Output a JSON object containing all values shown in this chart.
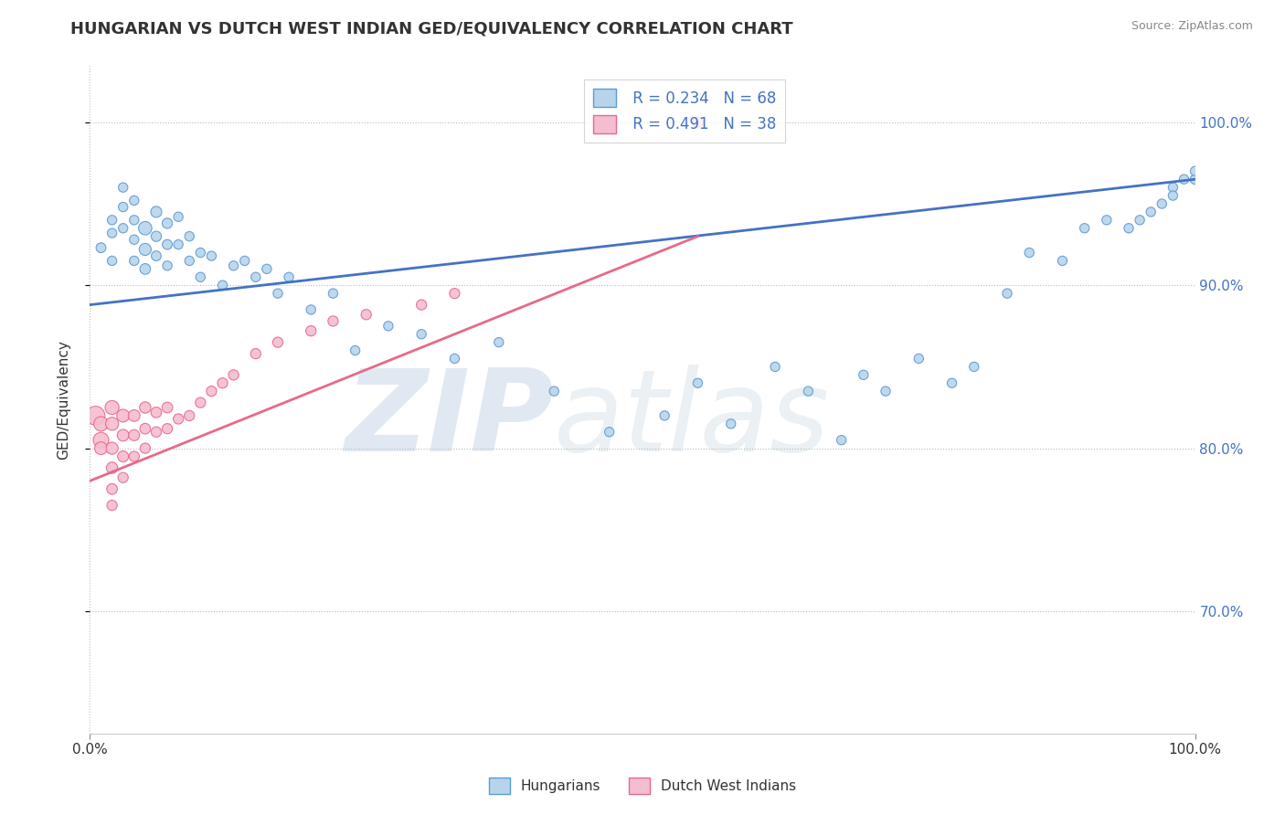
{
  "title": "HUNGARIAN VS DUTCH WEST INDIAN GED/EQUIVALENCY CORRELATION CHART",
  "source": "Source: ZipAtlas.com",
  "ylabel": "GED/Equivalency",
  "y_ticks_labels": [
    "70.0%",
    "80.0%",
    "90.0%",
    "100.0%"
  ],
  "y_tick_vals": [
    0.7,
    0.8,
    0.9,
    1.0
  ],
  "x_min": 0.0,
  "x_max": 1.0,
  "y_min": 0.625,
  "y_max": 1.035,
  "legend_r_hungarian": "0.234",
  "legend_n_hungarian": "68",
  "legend_r_dutch": "0.491",
  "legend_n_dutch": "38",
  "legend_label_hungarian": "Hungarians",
  "legend_label_dutch": "Dutch West Indians",
  "color_hungarian_fill": "#b8d4ea",
  "color_hungarian_edge": "#5b9bd5",
  "color_dutch_fill": "#f4bdd0",
  "color_dutch_edge": "#e8698a",
  "color_line_hungarian": "#4472c4",
  "color_line_dutch": "#e8698a",
  "hungarian_x": [
    0.01,
    0.02,
    0.02,
    0.02,
    0.03,
    0.03,
    0.03,
    0.04,
    0.04,
    0.04,
    0.04,
    0.05,
    0.05,
    0.05,
    0.06,
    0.06,
    0.06,
    0.07,
    0.07,
    0.07,
    0.08,
    0.08,
    0.09,
    0.09,
    0.1,
    0.1,
    0.11,
    0.12,
    0.13,
    0.14,
    0.15,
    0.16,
    0.17,
    0.18,
    0.2,
    0.22,
    0.24,
    0.27,
    0.3,
    0.33,
    0.37,
    0.42,
    0.47,
    0.52,
    0.55,
    0.58,
    0.62,
    0.65,
    0.68,
    0.7,
    0.72,
    0.75,
    0.78,
    0.8,
    0.83,
    0.85,
    0.88,
    0.9,
    0.92,
    0.94,
    0.95,
    0.96,
    0.97,
    0.98,
    0.98,
    0.99,
    1.0,
    1.0
  ],
  "hungarian_y": [
    0.923,
    0.915,
    0.932,
    0.94,
    0.96,
    0.948,
    0.935,
    0.952,
    0.94,
    0.928,
    0.915,
    0.935,
    0.922,
    0.91,
    0.945,
    0.93,
    0.918,
    0.938,
    0.925,
    0.912,
    0.942,
    0.925,
    0.93,
    0.915,
    0.92,
    0.905,
    0.918,
    0.9,
    0.912,
    0.915,
    0.905,
    0.91,
    0.895,
    0.905,
    0.885,
    0.895,
    0.86,
    0.875,
    0.87,
    0.855,
    0.865,
    0.835,
    0.81,
    0.82,
    0.84,
    0.815,
    0.85,
    0.835,
    0.805,
    0.845,
    0.835,
    0.855,
    0.84,
    0.85,
    0.895,
    0.92,
    0.915,
    0.935,
    0.94,
    0.935,
    0.94,
    0.945,
    0.95,
    0.96,
    0.955,
    0.965,
    0.965,
    0.97
  ],
  "hungarian_size": [
    60,
    55,
    55,
    55,
    55,
    55,
    55,
    55,
    55,
    55,
    55,
    110,
    90,
    70,
    75,
    65,
    60,
    65,
    60,
    55,
    55,
    55,
    55,
    55,
    55,
    55,
    55,
    55,
    55,
    55,
    55,
    55,
    55,
    55,
    55,
    55,
    55,
    55,
    55,
    55,
    55,
    55,
    55,
    55,
    55,
    55,
    55,
    55,
    55,
    55,
    55,
    55,
    55,
    55,
    55,
    55,
    55,
    55,
    55,
    55,
    55,
    55,
    55,
    55,
    55,
    55,
    60,
    55
  ],
  "dutch_x": [
    0.005,
    0.01,
    0.01,
    0.01,
    0.02,
    0.02,
    0.02,
    0.02,
    0.02,
    0.02,
    0.03,
    0.03,
    0.03,
    0.03,
    0.04,
    0.04,
    0.04,
    0.05,
    0.05,
    0.05,
    0.06,
    0.06,
    0.07,
    0.07,
    0.08,
    0.09,
    0.1,
    0.11,
    0.12,
    0.13,
    0.15,
    0.17,
    0.2,
    0.22,
    0.25,
    0.3,
    0.33,
    0.55
  ],
  "dutch_y": [
    0.82,
    0.805,
    0.815,
    0.8,
    0.825,
    0.815,
    0.8,
    0.788,
    0.775,
    0.765,
    0.82,
    0.808,
    0.795,
    0.782,
    0.82,
    0.808,
    0.795,
    0.825,
    0.812,
    0.8,
    0.822,
    0.81,
    0.825,
    0.812,
    0.818,
    0.82,
    0.828,
    0.835,
    0.84,
    0.845,
    0.858,
    0.865,
    0.872,
    0.878,
    0.882,
    0.888,
    0.895,
    1.0
  ],
  "dutch_size": [
    220,
    150,
    130,
    100,
    120,
    105,
    90,
    80,
    70,
    65,
    100,
    85,
    75,
    65,
    85,
    75,
    65,
    80,
    70,
    65,
    70,
    65,
    70,
    65,
    65,
    65,
    65,
    65,
    65,
    65,
    65,
    65,
    65,
    65,
    65,
    65,
    65,
    65
  ],
  "trend_hun_x0": 0.0,
  "trend_hun_x1": 1.0,
  "trend_hun_y0": 0.888,
  "trend_hun_y1": 0.965,
  "trend_dutch_x0": 0.0,
  "trend_dutch_x1": 0.55,
  "trend_dutch_y0": 0.78,
  "trend_dutch_y1": 0.93
}
